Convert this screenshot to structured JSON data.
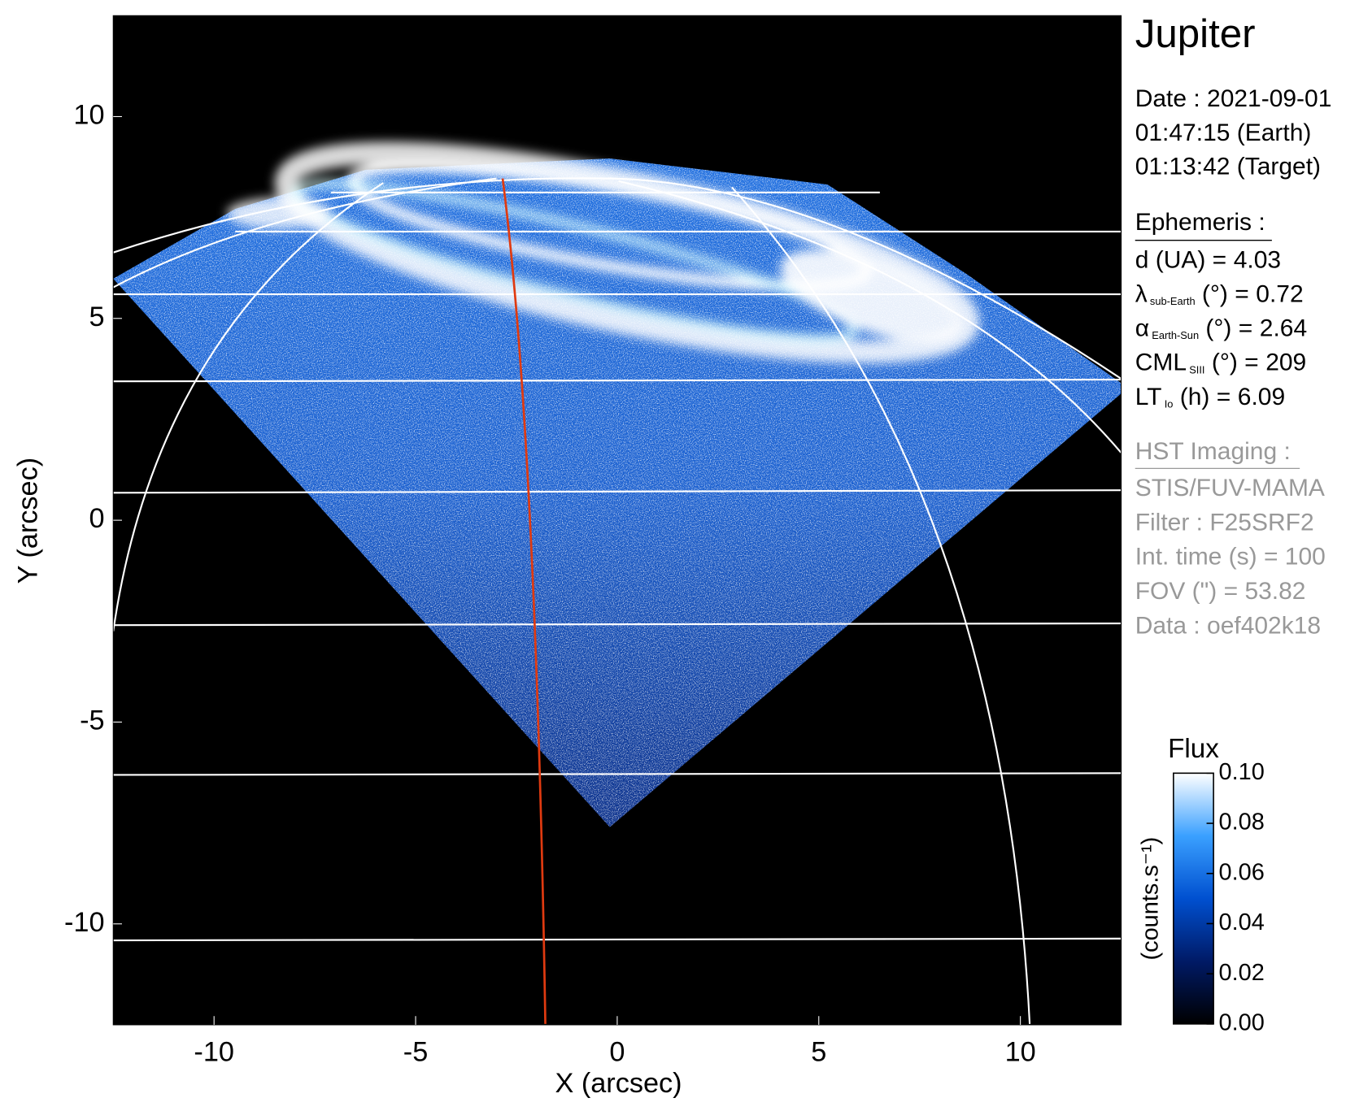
{
  "chart_data": {
    "type": "image",
    "title": "Jupiter",
    "x_label": "X (arcsec)",
    "y_label": "Y (arcsec)",
    "xlim": [
      -12.5,
      12.5
    ],
    "ylim": [
      -12.5,
      12.5
    ],
    "xticks": [
      -10,
      -5,
      0,
      5,
      10
    ],
    "yticks": [
      -10,
      -5,
      0,
      5,
      10
    ],
    "colorbar": {
      "title": "Flux",
      "label": "(counts.s⁻¹)",
      "lim": [
        0,
        0.1
      ],
      "ticks": [
        {
          "value": 0,
          "label": "0.00"
        },
        {
          "value": 0.02,
          "label": "0.02"
        },
        {
          "value": 0.04,
          "label": "0.04"
        },
        {
          "value": 0.06,
          "label": "0.06"
        },
        {
          "value": 0.08,
          "label": "0.08"
        },
        {
          "value": 0.1,
          "label": "0.10"
        }
      ],
      "colors": [
        "#000000",
        "#001a66",
        "#0050d0",
        "#3aa0ff",
        "#ffffff"
      ]
    }
  },
  "info": {
    "date": [
      "Date : 2021-09-01",
      "01:47:15 (Earth)",
      "01:13:42 (Target)"
    ],
    "ephemeris": {
      "title": "Ephemeris :",
      "rows": [
        {
          "symbol": "d (UA)",
          "rest": "    =",
          "value": 4.03
        },
        {
          "symbol": "λ",
          "sub": "sub-Earth",
          "rest": " (°) =",
          "value": 0.72
        },
        {
          "symbol": "α",
          "sub": "Earth-Sun",
          "rest": " (°) =",
          "value": 2.64
        },
        {
          "symbol": "CML",
          "sub": "SIII",
          "rest": " (°) =",
          "value": 209
        },
        {
          "symbol": "LT",
          "sub": "Io",
          "rest": " (h) =",
          "value": 6.09
        }
      ]
    },
    "hst": {
      "title": "HST Imaging :",
      "lines": [
        "STIS/FUV-MAMA",
        "Filter : F25SRF2",
        "Int. time (s) = 100",
        "FOV (\") = 53.82",
        "Data : oef402k18"
      ]
    }
  }
}
